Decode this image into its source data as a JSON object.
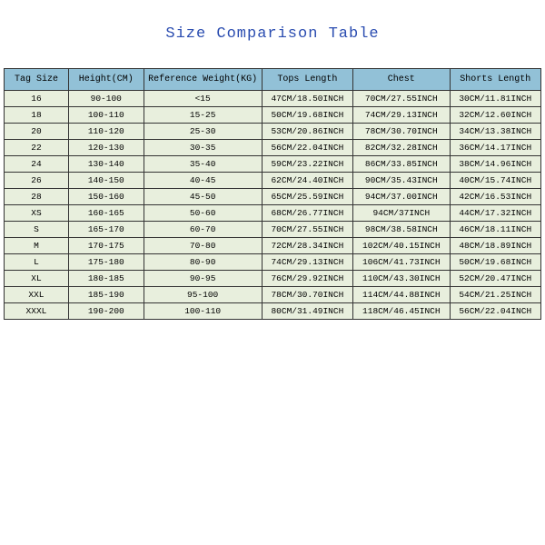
{
  "title": "Size Comparison Table",
  "header_bg": "#92c1d7",
  "row_bg": "#e8efdd",
  "border_color": "#333333",
  "title_color": "#2a4cb0",
  "font_family": "Courier New, monospace",
  "columns": [
    "Tag Size",
    "Height(CM)",
    "Reference Weight(KG)",
    "Tops Length",
    "Chest",
    "Shorts Length"
  ],
  "rows": [
    [
      "16",
      "90-100",
      "<15",
      "47CM/18.50INCH",
      "70CM/27.55INCH",
      "30CM/11.81INCH"
    ],
    [
      "18",
      "100-110",
      "15-25",
      "50CM/19.68INCH",
      "74CM/29.13INCH",
      "32CM/12.60INCH"
    ],
    [
      "20",
      "110-120",
      "25-30",
      "53CM/20.86INCH",
      "78CM/30.70INCH",
      "34CM/13.38INCH"
    ],
    [
      "22",
      "120-130",
      "30-35",
      "56CM/22.04INCH",
      "82CM/32.28INCH",
      "36CM/14.17INCH"
    ],
    [
      "24",
      "130-140",
      "35-40",
      "59CM/23.22INCH",
      "86CM/33.85INCH",
      "38CM/14.96INCH"
    ],
    [
      "26",
      "140-150",
      "40-45",
      "62CM/24.40INCH",
      "90CM/35.43INCH",
      "40CM/15.74INCH"
    ],
    [
      "28",
      "150-160",
      "45-50",
      "65CM/25.59INCH",
      "94CM/37.00INCH",
      "42CM/16.53INCH"
    ],
    [
      "XS",
      "160-165",
      "50-60",
      "68CM/26.77INCH",
      "94CM/37INCH",
      "44CM/17.32INCH"
    ],
    [
      "S",
      "165-170",
      "60-70",
      "70CM/27.55INCH",
      "98CM/38.58INCH",
      "46CM/18.11INCH"
    ],
    [
      "M",
      "170-175",
      "70-80",
      "72CM/28.34INCH",
      "102CM/40.15INCH",
      "48CM/18.89INCH"
    ],
    [
      "L",
      "175-180",
      "80-90",
      "74CM/29.13INCH",
      "106CM/41.73INCH",
      "50CM/19.68INCH"
    ],
    [
      "XL",
      "180-185",
      "90-95",
      "76CM/29.92INCH",
      "110CM/43.30INCH",
      "52CM/20.47INCH"
    ],
    [
      "XXL",
      "185-190",
      "95-100",
      "78CM/30.70INCH",
      "114CM/44.88INCH",
      "54CM/21.25INCH"
    ],
    [
      "XXXL",
      "190-200",
      "100-110",
      "80CM/31.49INCH",
      "118CM/46.45INCH",
      "56CM/22.04INCH"
    ]
  ]
}
